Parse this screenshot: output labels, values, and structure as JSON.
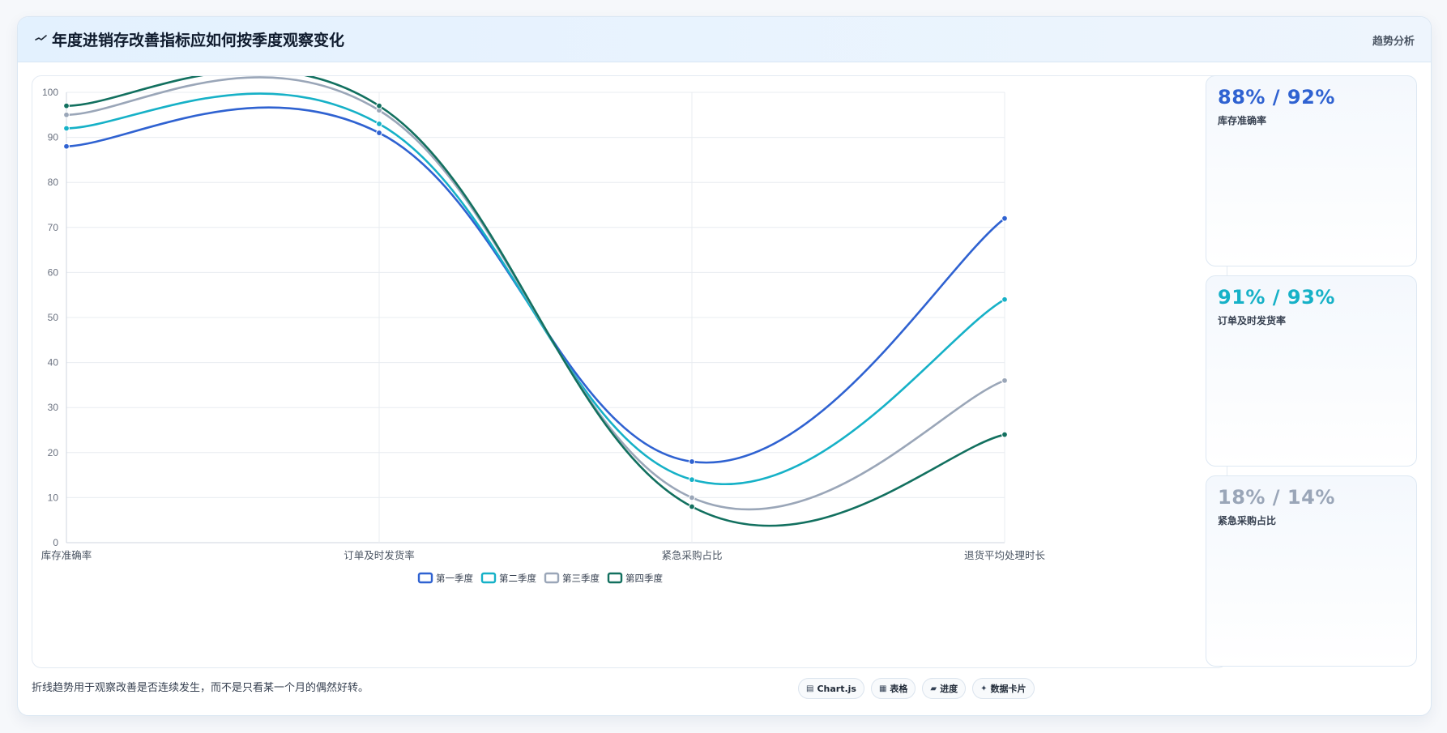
{
  "header": {
    "title": "年度进销存改善指标应如何按季度观察变化",
    "tag": "趋势分析"
  },
  "chart_data": {
    "type": "line",
    "categories": [
      "库存准确率",
      "订单及时发货率",
      "紧急采购占比",
      "退货平均处理时长"
    ],
    "series": [
      {
        "name": "第一季度",
        "color": "#2f62d1",
        "values": [
          88,
          91,
          18,
          72
        ]
      },
      {
        "name": "第二季度",
        "color": "#16b1c7",
        "values": [
          92,
          93,
          14,
          54
        ]
      },
      {
        "name": "第三季度",
        "color": "#9aa6b8",
        "values": [
          95,
          96,
          10,
          36
        ]
      },
      {
        "name": "第四季度",
        "color": "#12705f",
        "values": [
          97,
          97,
          8,
          24
        ]
      }
    ],
    "ylim": [
      0,
      100
    ],
    "yticks": [
      "0",
      "10",
      "20",
      "30",
      "40",
      "50",
      "60",
      "70",
      "80",
      "90",
      "100"
    ],
    "legend": "bottom-center",
    "grid": true
  },
  "kpis": [
    {
      "value": "88% / 92%",
      "label": "库存准确率",
      "color": "#2f62d1"
    },
    {
      "value": "91% / 93%",
      "label": "订单及时发货率",
      "color": "#16b1c7"
    },
    {
      "value": "18% / 14%",
      "label": "紧急采购占比",
      "color": "#9aa6b8"
    }
  ],
  "footer": {
    "note": "折线趋势用于观察改善是否连续发生，而不是只看某一个月的偶然好转。"
  },
  "chips": [
    {
      "icon": "chart-icon",
      "glyph": "▤",
      "label": "Chart.js"
    },
    {
      "icon": "table-icon",
      "glyph": "▦",
      "label": "表格"
    },
    {
      "icon": "progress-icon",
      "glyph": "▰",
      "label": "进度"
    },
    {
      "icon": "sparkle-icon",
      "glyph": "✦",
      "label": "数据卡片"
    }
  ]
}
